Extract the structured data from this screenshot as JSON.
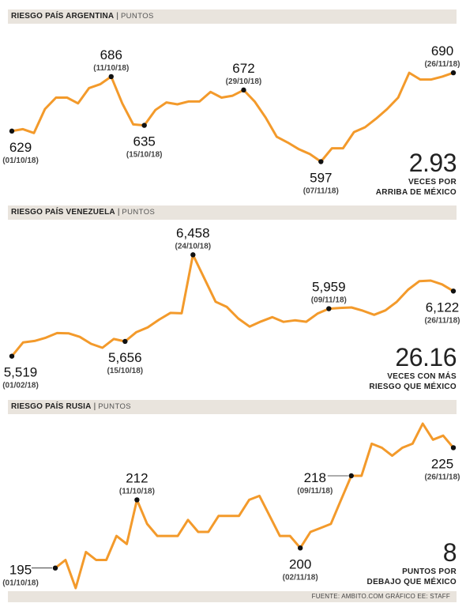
{
  "sections": [
    {
      "title": "RIESGO PAÍS ARGENTINA",
      "unit": "PUNTOS",
      "big_value": "2.93",
      "big_caption": [
        "VECES POR",
        "ARRIBA DE MÉXICO"
      ]
    },
    {
      "title": "RIESGO PAÍS VENEZUELA",
      "unit": "PUNTOS",
      "big_value": "26.16",
      "big_caption": [
        "VECES CON MÁS",
        "RIESGO QUE MÉXICO"
      ]
    },
    {
      "title": "RIESGO PAÍS RUSIA",
      "unit": "PUNTOS",
      "big_value": "8",
      "big_caption": [
        "PUNTOS POR",
        "DEBAJO QUE MÉXICO"
      ]
    }
  ],
  "footer": "FUENTE: AMBITO.COM GRÁFICO EE: STAFF",
  "colors": {
    "line": "#f39a2b",
    "band": "#e9e4dd",
    "marker": "#111111"
  },
  "chart_data": [
    {
      "type": "line",
      "title": "RIESGO PAÍS ARGENTINA",
      "ylabel": "PUNTOS",
      "ylim": [
        590,
        700
      ],
      "values": [
        629,
        631,
        627,
        652,
        664,
        664,
        658,
        674,
        678,
        686,
        658,
        636,
        635,
        651,
        659,
        657,
        660,
        660,
        670,
        664,
        666,
        672,
        660,
        643,
        623,
        617,
        610,
        605,
        597,
        611,
        611,
        628,
        633,
        642,
        652,
        664,
        690,
        683,
        683,
        686,
        690
      ],
      "annotations": [
        {
          "index": 0,
          "value": "629",
          "date": "(01/10/18)",
          "pos": "below"
        },
        {
          "index": 9,
          "value": "686",
          "date": "(11/10/18)",
          "pos": "above"
        },
        {
          "index": 12,
          "value": "635",
          "date": "(15/10/18)",
          "pos": "below"
        },
        {
          "index": 21,
          "value": "672",
          "date": "(29/10/18)",
          "pos": "above"
        },
        {
          "index": 28,
          "value": "597",
          "date": "(07/11/18)",
          "pos": "below"
        },
        {
          "index": 40,
          "value": "690",
          "date": "(26/11/18)",
          "pos": "above"
        }
      ]
    },
    {
      "type": "line",
      "title": "RIESGO PAÍS VENEZUELA",
      "ylabel": "PUNTOS",
      "ylim": [
        5480,
        6490
      ],
      "values": [
        5519,
        5647,
        5660,
        5690,
        5733,
        5731,
        5698,
        5634,
        5597,
        5678,
        5656,
        5742,
        5786,
        5857,
        5920,
        5916,
        6458,
        6240,
        6023,
        5975,
        5868,
        5793,
        5840,
        5880,
        5837,
        5851,
        5838,
        5913,
        5959,
        5966,
        5970,
        5940,
        5902,
        5943,
        6022,
        6135,
        6214,
        6219,
        6184,
        6122
      ],
      "annotations": [
        {
          "index": 0,
          "value": "5,519",
          "date": "(01/02/18)",
          "pos": "below"
        },
        {
          "index": 10,
          "value": "5,656",
          "date": "(15/10/18)",
          "pos": "below"
        },
        {
          "index": 16,
          "value": "6,458",
          "date": "(24/10/18)",
          "pos": "above"
        },
        {
          "index": 28,
          "value": "5,959",
          "date": "(09/11/18)",
          "pos": "above"
        },
        {
          "index": 39,
          "value": "6,122",
          "date": "(26/11/18)",
          "pos": "below"
        }
      ]
    },
    {
      "type": "line",
      "title": "RIESGO PAÍS RUSIA",
      "ylabel": "PUNTOS",
      "ylim": [
        191,
        231
      ],
      "values": [
        195,
        197,
        190,
        199,
        197,
        197,
        203,
        201,
        212,
        206,
        203,
        203,
        203,
        207,
        204,
        204,
        208,
        208,
        208,
        212,
        213,
        208,
        203,
        203,
        200,
        204,
        205,
        206,
        212,
        218,
        218,
        226,
        225,
        223,
        225,
        226,
        231,
        227,
        228,
        225
      ],
      "annotations": [
        {
          "index": 0,
          "value": "195",
          "date": "(01/10/18)",
          "pos": "left"
        },
        {
          "index": 8,
          "value": "212",
          "date": "(11/10/18)",
          "pos": "above"
        },
        {
          "index": 24,
          "value": "200",
          "date": "(02/11/18)",
          "pos": "below"
        },
        {
          "index": 29,
          "value": "218",
          "date": "(09/11/18)",
          "pos": "left"
        },
        {
          "index": 39,
          "value": "225",
          "date": "(26/11/18)",
          "pos": "below"
        }
      ]
    }
  ]
}
